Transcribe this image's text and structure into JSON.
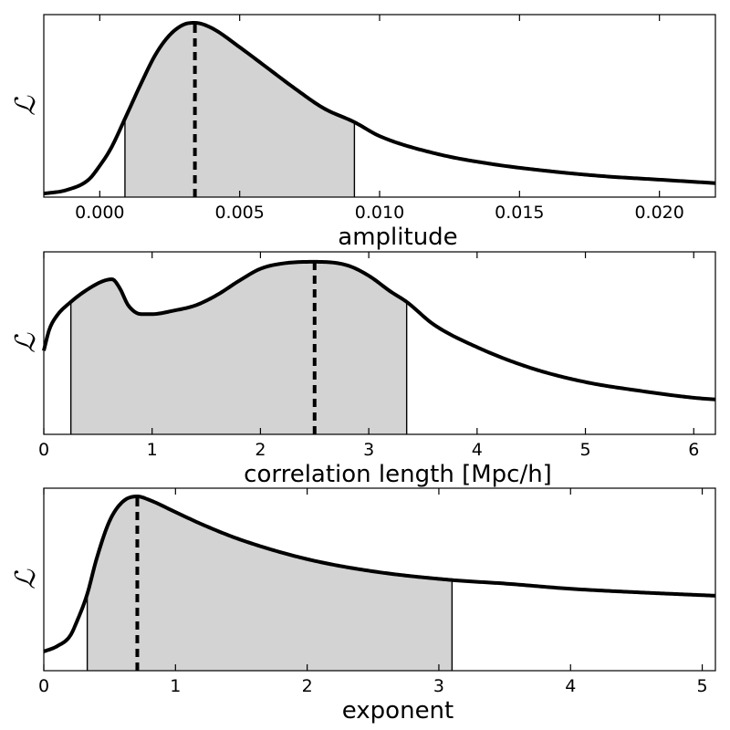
{
  "chart_data": [
    {
      "type": "line",
      "ylabel": "ℒ",
      "xlabel": "amplitude",
      "xlim": [
        -0.002,
        0.022
      ],
      "xticks": [
        0.0,
        0.005,
        0.01,
        0.015,
        0.02
      ],
      "xtick_labels": [
        "0.000",
        "0.005",
        "0.010",
        "0.015",
        "0.020"
      ],
      "peak": 0.0034,
      "shaded_interval": [
        0.0009,
        0.0091
      ],
      "curve": {
        "x": [
          -0.002,
          -0.0012,
          -0.0004,
          0.0,
          0.0004,
          0.0009,
          0.0015,
          0.002,
          0.0025,
          0.003,
          0.0034,
          0.004,
          0.005,
          0.006,
          0.007,
          0.008,
          0.0091,
          0.01,
          0.012,
          0.014,
          0.016,
          0.018,
          0.02,
          0.022
        ],
        "y": [
          0.02,
          0.04,
          0.1,
          0.18,
          0.28,
          0.45,
          0.66,
          0.82,
          0.93,
          0.99,
          1.0,
          0.97,
          0.86,
          0.74,
          0.62,
          0.51,
          0.43,
          0.35,
          0.25,
          0.19,
          0.15,
          0.12,
          0.1,
          0.08
        ]
      }
    },
    {
      "type": "line",
      "ylabel": "ℒ",
      "xlabel": "correlation length [Mpc/h]",
      "xlim": [
        0,
        6.2
      ],
      "xticks": [
        0,
        1,
        2,
        3,
        4,
        5,
        6
      ],
      "xtick_labels": [
        "0",
        "1",
        "2",
        "3",
        "4",
        "5",
        "6"
      ],
      "peak": 2.5,
      "shaded_interval": [
        0.25,
        3.35
      ],
      "curve": {
        "x": [
          0.0,
          0.05,
          0.12,
          0.25,
          0.4,
          0.55,
          0.63,
          0.7,
          0.78,
          0.9,
          1.0,
          1.2,
          1.4,
          1.6,
          1.8,
          2.0,
          2.2,
          2.5,
          2.8,
          3.0,
          3.2,
          3.35,
          3.6,
          4.0,
          4.5,
          5.0,
          5.5,
          6.0,
          6.2
        ],
        "y": [
          0.48,
          0.6,
          0.68,
          0.76,
          0.83,
          0.88,
          0.89,
          0.84,
          0.74,
          0.69,
          0.69,
          0.71,
          0.74,
          0.8,
          0.88,
          0.95,
          0.98,
          0.99,
          0.97,
          0.91,
          0.82,
          0.76,
          0.63,
          0.5,
          0.38,
          0.3,
          0.25,
          0.21,
          0.2
        ]
      }
    },
    {
      "type": "line",
      "ylabel": "ℒ",
      "xlabel": "exponent",
      "xlim": [
        0,
        5.1
      ],
      "xticks": [
        0,
        1,
        2,
        3,
        4,
        5
      ],
      "xtick_labels": [
        "0",
        "1",
        "2",
        "3",
        "4",
        "5"
      ],
      "peak": 0.71,
      "shaded_interval": [
        0.33,
        3.1
      ],
      "curve": {
        "x": [
          0.0,
          0.1,
          0.2,
          0.25,
          0.33,
          0.4,
          0.5,
          0.6,
          0.71,
          0.8,
          1.0,
          1.2,
          1.5,
          2.0,
          2.5,
          3.1,
          3.5,
          4.0,
          4.5,
          5.1
        ],
        "y": [
          0.11,
          0.14,
          0.2,
          0.28,
          0.44,
          0.64,
          0.86,
          0.97,
          1.0,
          0.98,
          0.91,
          0.84,
          0.75,
          0.64,
          0.57,
          0.52,
          0.5,
          0.47,
          0.45,
          0.43
        ]
      }
    }
  ]
}
